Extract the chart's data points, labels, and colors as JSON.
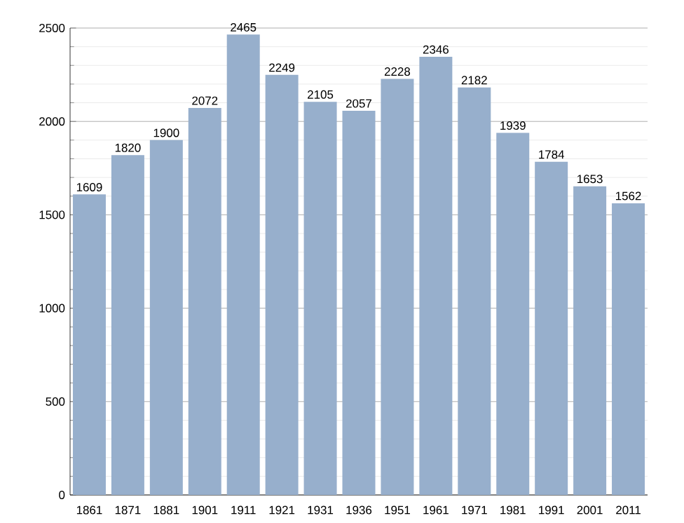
{
  "chart_data": {
    "type": "bar",
    "categories": [
      "1861",
      "1871",
      "1881",
      "1901",
      "1911",
      "1921",
      "1931",
      "1936",
      "1951",
      "1961",
      "1971",
      "1981",
      "1991",
      "2001",
      "2011"
    ],
    "values": [
      1609,
      1820,
      1900,
      2072,
      2465,
      2249,
      2105,
      2057,
      2228,
      2346,
      2182,
      1939,
      1784,
      1653,
      1562
    ],
    "color": "#97afcc",
    "ylim": [
      0,
      2500
    ],
    "yticks": [
      0,
      500,
      1000,
      1500,
      2000,
      2500
    ],
    "grid": "y",
    "data_labels": true
  }
}
